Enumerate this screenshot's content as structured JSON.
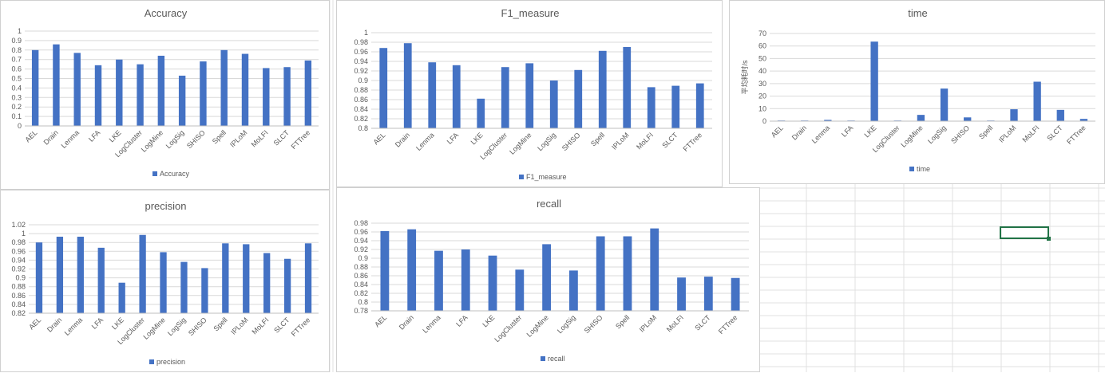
{
  "colors": {
    "bar": "#4472c4",
    "grid": "#d9d9d9",
    "text": "#595959",
    "cell_lines": "#e1e1e1",
    "selection": "#217346"
  },
  "chart_data": [
    {
      "id": "accuracy",
      "type": "bar",
      "title": "Accuracy",
      "categories": [
        "AEL",
        "Drain",
        "Lenma",
        "LFA",
        "LKE",
        "LogCluster",
        "LogMine",
        "LogSig",
        "SHISO",
        "Spell",
        "IPLoM",
        "MoLFI",
        "SLCT",
        "FTTree"
      ],
      "series": [
        {
          "name": "Accuracy",
          "values": [
            0.8,
            0.86,
            0.77,
            0.64,
            0.7,
            0.65,
            0.74,
            0.53,
            0.68,
            0.8,
            0.76,
            0.61,
            0.62,
            0.69
          ]
        }
      ],
      "ylim": [
        0,
        1
      ],
      "yticks": [
        0,
        0.1,
        0.2,
        0.3,
        0.4,
        0.5,
        0.6,
        0.7,
        0.8,
        0.9,
        1
      ],
      "ytick_labels": [
        "0",
        "0.1",
        "0.2",
        "0.3",
        "0.4",
        "0.5",
        "0.6",
        "0.7",
        "0.8",
        "0.9",
        "1"
      ],
      "ylabel": "",
      "grid": true,
      "legend": "bottom"
    },
    {
      "id": "f1",
      "type": "bar",
      "title": "F1_measure",
      "categories": [
        "AEL",
        "Drain",
        "Lenma",
        "LFA",
        "LKE",
        "LogCluster",
        "LogMine",
        "LogSig",
        "SHISO",
        "Spell",
        "IPLoM",
        "MoLFI",
        "SLCT",
        "FTTree"
      ],
      "series": [
        {
          "name": "F1_measure",
          "values": [
            0.968,
            0.978,
            0.938,
            0.932,
            0.862,
            0.928,
            0.936,
            0.9,
            0.922,
            0.962,
            0.97,
            0.886,
            0.889,
            0.894
          ]
        }
      ],
      "ylim": [
        0.8,
        1
      ],
      "yticks": [
        0.8,
        0.82,
        0.84,
        0.86,
        0.88,
        0.9,
        0.92,
        0.94,
        0.96,
        0.98,
        1
      ],
      "ytick_labels": [
        "0.8",
        "0.82",
        "0.84",
        "0.86",
        "0.88",
        "0.9",
        "0.92",
        "0.94",
        "0.96",
        "0.98",
        "1"
      ],
      "ylabel": "",
      "grid": true,
      "legend": "bottom"
    },
    {
      "id": "time",
      "type": "bar",
      "title": "time",
      "categories": [
        "AEL",
        "Drain",
        "Lenma",
        "LFA",
        "LKE",
        "LogCluster",
        "LogMine",
        "LogSig",
        "SHISO",
        "Spell",
        "IPLoM",
        "MoLFI",
        "SLCT",
        "FTTree"
      ],
      "series": [
        {
          "name": "time",
          "values": [
            0.5,
            0.5,
            1.0,
            0.5,
            63.5,
            0.5,
            5.0,
            26.0,
            3.0,
            0.5,
            9.5,
            31.5,
            9.0,
            1.8
          ]
        }
      ],
      "ylim": [
        0,
        70
      ],
      "yticks": [
        0,
        10,
        20,
        30,
        40,
        50,
        60,
        70
      ],
      "ytick_labels": [
        "0",
        "10",
        "20",
        "30",
        "40",
        "50",
        "60",
        "70"
      ],
      "ylabel": "平均耗时/s",
      "grid": true,
      "legend": "bottom"
    },
    {
      "id": "precision",
      "type": "bar",
      "title": "precision",
      "categories": [
        "AEL",
        "Drain",
        "Lenma",
        "LFA",
        "LKE",
        "LogCluster",
        "LogMine",
        "LogSig",
        "SHISO",
        "Spell",
        "IPLoM",
        "MoLFI",
        "SLCT",
        "FTTree"
      ],
      "series": [
        {
          "name": "precision",
          "values": [
            0.98,
            0.993,
            0.993,
            0.968,
            0.889,
            0.997,
            0.958,
            0.936,
            0.922,
            0.978,
            0.976,
            0.956,
            0.943,
            0.978
          ]
        }
      ],
      "ylim": [
        0.82,
        1.02
      ],
      "yticks": [
        0.82,
        0.84,
        0.86,
        0.88,
        0.9,
        0.92,
        0.94,
        0.96,
        0.98,
        1,
        1.02
      ],
      "ytick_labels": [
        "0.82",
        "0.84",
        "0.86",
        "0.88",
        "0.9",
        "0.92",
        "0.94",
        "0.96",
        "0.98",
        "1",
        "1.02"
      ],
      "ylabel": "",
      "grid": true,
      "legend": "bottom"
    },
    {
      "id": "recall",
      "type": "bar",
      "title": "recall",
      "categories": [
        "AEL",
        "Drain",
        "Lenma",
        "LFA",
        "LKE",
        "LogCluster",
        "LogMine",
        "LogSig",
        "SHISO",
        "Spell",
        "IPLoM",
        "MoLFI",
        "SLCT",
        "FTTree"
      ],
      "series": [
        {
          "name": "recall",
          "values": [
            0.962,
            0.966,
            0.917,
            0.92,
            0.906,
            0.874,
            0.932,
            0.872,
            0.95,
            0.95,
            0.968,
            0.856,
            0.858,
            0.855
          ]
        }
      ],
      "ylim": [
        0.78,
        0.98
      ],
      "yticks": [
        0.78,
        0.8,
        0.82,
        0.84,
        0.86,
        0.88,
        0.9,
        0.92,
        0.94,
        0.96,
        0.98
      ],
      "ytick_labels": [
        "0.78",
        "0.8",
        "0.82",
        "0.84",
        "0.86",
        "0.88",
        "0.9",
        "0.92",
        "0.94",
        "0.96",
        "0.98"
      ],
      "ylabel": "",
      "grid": true,
      "legend": "bottom"
    }
  ]
}
